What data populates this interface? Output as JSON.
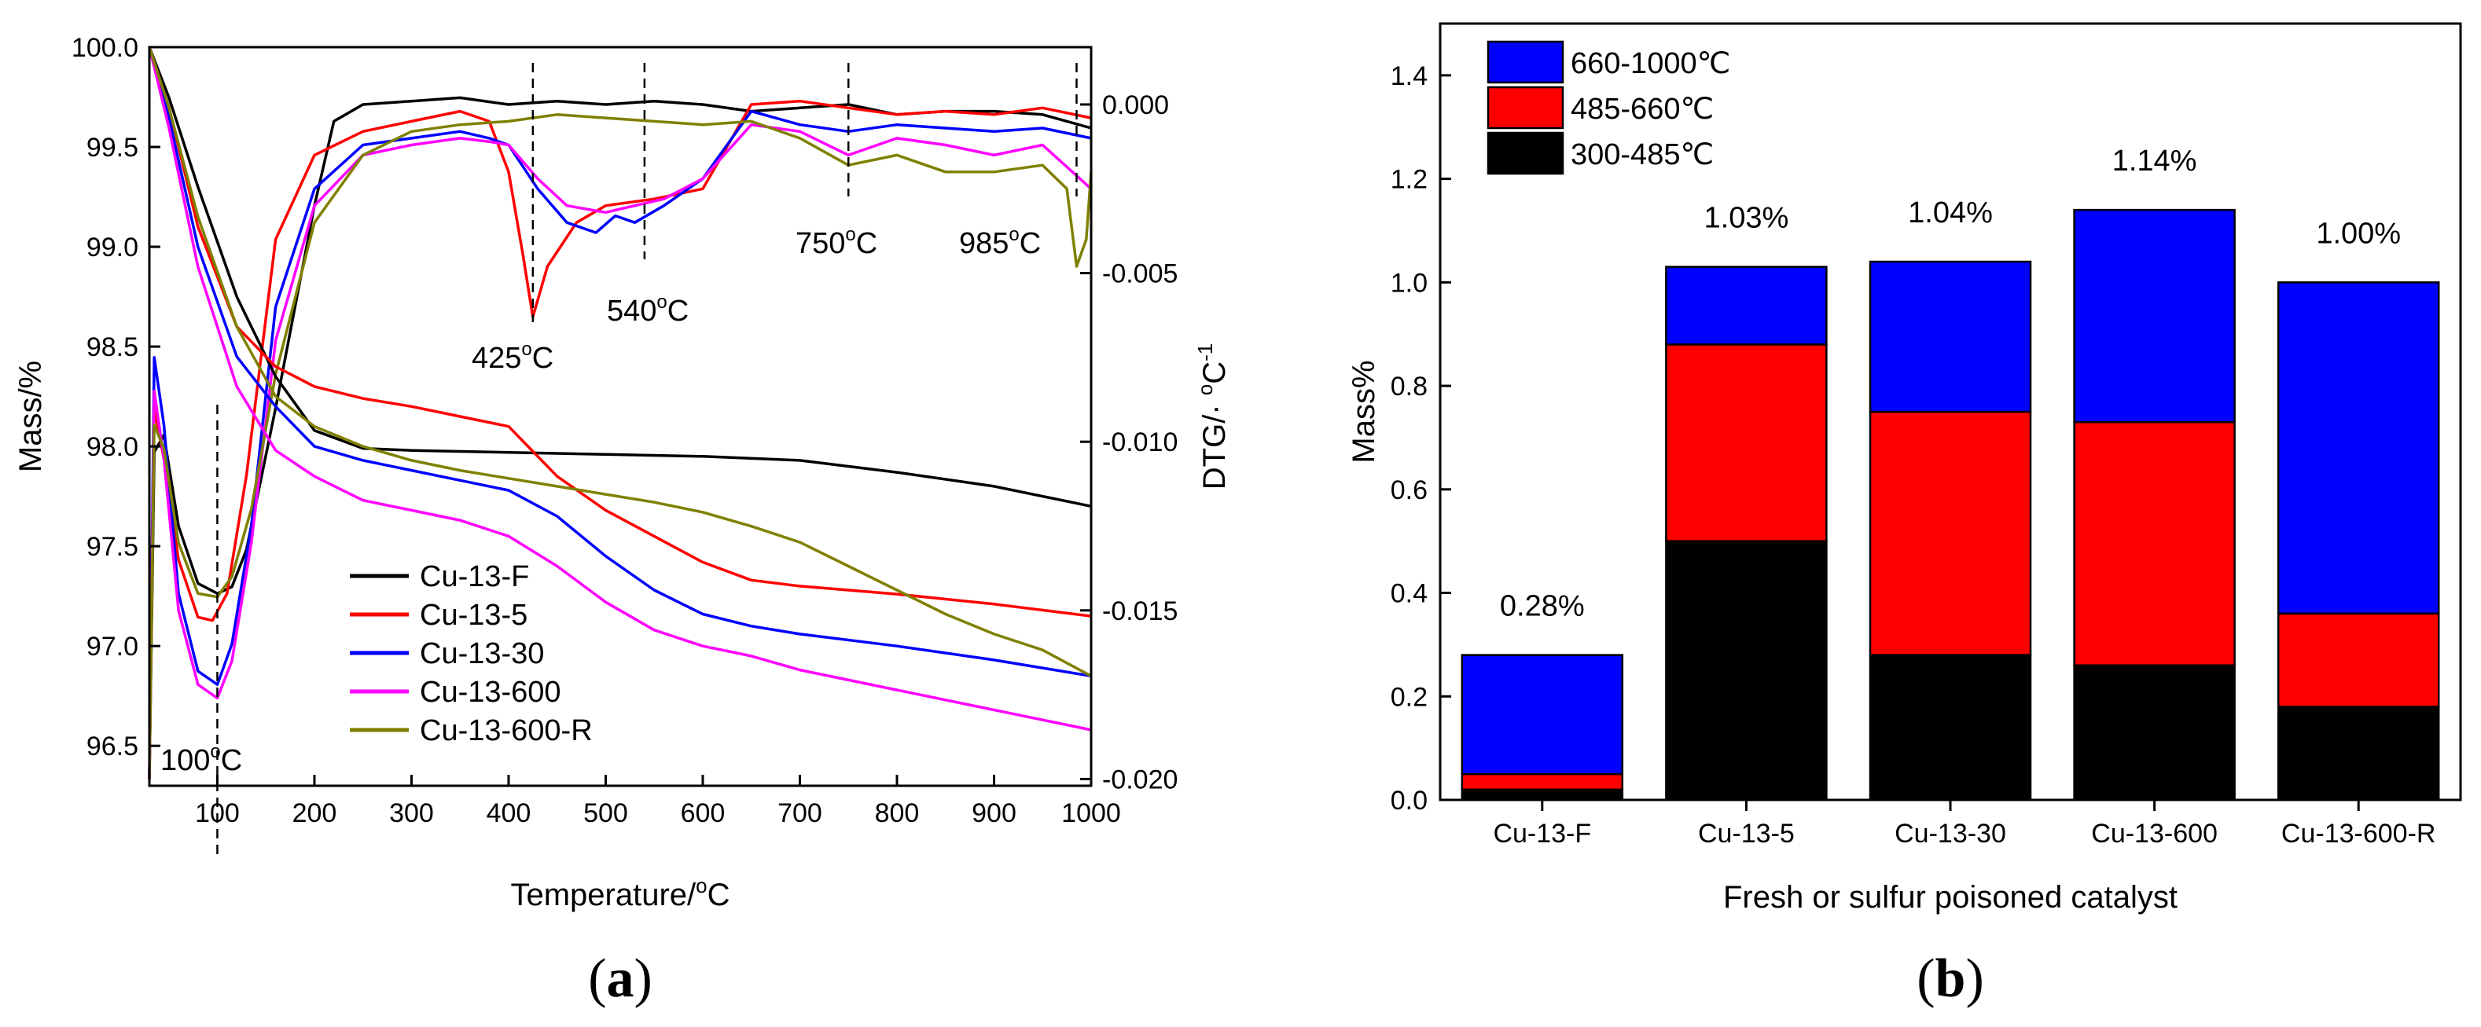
{
  "chart_data": [
    {
      "type": "line",
      "panel": "a",
      "xlabel": "Temperature/℃",
      "xlabel_main": "Temperature/",
      "xlabel_unit": "C",
      "ylabel": "Mass/%",
      "y2label": "DTG/·℃-1",
      "y2label_main": "DTG/· ",
      "y2label_unit": "C",
      "y2label_exp": "-1",
      "xlim": [
        30,
        1000
      ],
      "ylim": [
        96.3,
        100.0
      ],
      "y2lim": [
        -0.0202,
        0.0017
      ],
      "xticks": [
        "100",
        "200",
        "300",
        "400",
        "500",
        "600",
        "700",
        "800",
        "900",
        "1000"
      ],
      "yticks": [
        "96.5",
        "97.0",
        "97.5",
        "98.0",
        "98.5",
        "99.0",
        "99.5",
        "100.0"
      ],
      "y2ticks": [
        "0.000",
        "-0.005",
        "-0.010",
        "-0.015",
        "-0.020"
      ],
      "annotations": [
        {
          "text": "425°C",
          "num": "425",
          "unit": "C",
          "x": 425
        },
        {
          "text": "540°C",
          "num": "540",
          "unit": "C",
          "x": 540
        },
        {
          "text": "750°C",
          "num": "750",
          "unit": "C",
          "x": 750
        },
        {
          "text": "985°C",
          "num": "985",
          "unit": "C",
          "x": 985
        },
        {
          "text": "100°C",
          "num": "100",
          "unit": "C",
          "x": 100
        }
      ],
      "series": [
        {
          "name": "Cu-13-F",
          "color": "#000000",
          "tg_x": [
            30,
            50,
            80,
            120,
            160,
            200,
            250,
            300,
            400,
            500,
            600,
            700,
            800,
            900,
            1000
          ],
          "tg_y": [
            100.0,
            99.75,
            99.3,
            98.75,
            98.35,
            98.08,
            97.99,
            97.98,
            97.97,
            97.96,
            97.95,
            97.93,
            97.87,
            97.8,
            97.7
          ],
          "dtg_x": [
            30,
            35,
            45,
            60,
            80,
            100,
            115,
            130,
            160,
            200,
            220,
            250,
            300,
            350,
            400,
            450,
            500,
            550,
            600,
            650,
            700,
            750,
            800,
            850,
            900,
            950,
            1000
          ],
          "dtg_y": [
            -0.02,
            -0.0103,
            -0.0098,
            -0.0125,
            -0.0142,
            -0.0145,
            -0.0143,
            -0.0132,
            -0.009,
            -0.003,
            -0.0005,
            0.0,
            0.0001,
            0.0002,
            0.0,
            0.0001,
            0.0,
            0.0001,
            0.0,
            -0.0002,
            -0.0001,
            0.0,
            -0.0003,
            -0.0002,
            -0.0002,
            -0.0003,
            -0.0007
          ]
        },
        {
          "name": "Cu-13-5",
          "color": "#ff0000",
          "tg_x": [
            30,
            50,
            80,
            120,
            160,
            200,
            250,
            300,
            350,
            400,
            420,
            450,
            500,
            550,
            600,
            650,
            700,
            800,
            900,
            1000
          ],
          "tg_y": [
            100.0,
            99.7,
            99.1,
            98.6,
            98.4,
            98.3,
            98.24,
            98.2,
            98.15,
            98.1,
            98.0,
            97.85,
            97.68,
            97.55,
            97.42,
            97.33,
            97.3,
            97.26,
            97.21,
            97.15
          ],
          "dtg_x": [
            30,
            35,
            45,
            60,
            80,
            95,
            110,
            130,
            160,
            200,
            250,
            300,
            350,
            380,
            400,
            415,
            425,
            440,
            470,
            500,
            550,
            600,
            650,
            700,
            750,
            800,
            850,
            900,
            950,
            1000
          ],
          "dtg_y": [
            -0.02,
            -0.009,
            -0.0105,
            -0.0135,
            -0.0152,
            -0.0153,
            -0.0145,
            -0.011,
            -0.004,
            -0.0015,
            -0.0008,
            -0.0005,
            -0.0002,
            -0.0005,
            -0.002,
            -0.0045,
            -0.0063,
            -0.0048,
            -0.0035,
            -0.003,
            -0.0028,
            -0.0025,
            0.0,
            0.0001,
            -0.0001,
            -0.0003,
            -0.0002,
            -0.0003,
            -0.0001,
            -0.0004
          ]
        },
        {
          "name": "Cu-13-30",
          "color": "#0000ff",
          "tg_x": [
            30,
            50,
            80,
            120,
            160,
            200,
            250,
            300,
            350,
            400,
            450,
            500,
            550,
            600,
            650,
            700,
            800,
            900,
            1000
          ],
          "tg_y": [
            100.0,
            99.65,
            99.0,
            98.45,
            98.2,
            98.0,
            97.93,
            97.88,
            97.83,
            97.78,
            97.65,
            97.45,
            97.28,
            97.16,
            97.1,
            97.06,
            97.0,
            96.93,
            96.85
          ],
          "dtg_x": [
            30,
            35,
            45,
            60,
            80,
            100,
            115,
            135,
            160,
            200,
            250,
            300,
            350,
            380,
            400,
            430,
            460,
            490,
            510,
            530,
            560,
            600,
            650,
            700,
            750,
            800,
            850,
            900,
            950,
            1000
          ],
          "dtg_y": [
            -0.02,
            -0.0075,
            -0.0095,
            -0.0145,
            -0.0168,
            -0.0172,
            -0.016,
            -0.0125,
            -0.006,
            -0.0025,
            -0.0012,
            -0.001,
            -0.0008,
            -0.001,
            -0.0012,
            -0.0025,
            -0.0035,
            -0.0038,
            -0.0033,
            -0.0035,
            -0.003,
            -0.0022,
            -0.0002,
            -0.0006,
            -0.0008,
            -0.0006,
            -0.0007,
            -0.0008,
            -0.0007,
            -0.001
          ]
        },
        {
          "name": "Cu-13-600",
          "color": "#ff00ff",
          "tg_x": [
            30,
            50,
            80,
            120,
            160,
            200,
            250,
            300,
            350,
            400,
            450,
            500,
            550,
            600,
            650,
            700,
            800,
            900,
            1000
          ],
          "tg_y": [
            100.0,
            99.6,
            98.9,
            98.3,
            97.98,
            97.85,
            97.73,
            97.68,
            97.63,
            97.55,
            97.4,
            97.22,
            97.08,
            97.0,
            96.95,
            96.88,
            96.78,
            96.68,
            96.58
          ],
          "dtg_x": [
            30,
            35,
            45,
            60,
            80,
            100,
            115,
            135,
            160,
            200,
            250,
            300,
            350,
            380,
            400,
            430,
            460,
            500,
            530,
            560,
            600,
            650,
            700,
            750,
            800,
            850,
            900,
            950,
            1000
          ],
          "dtg_y": [
            -0.02,
            -0.0085,
            -0.0105,
            -0.015,
            -0.0172,
            -0.0176,
            -0.0165,
            -0.013,
            -0.007,
            -0.003,
            -0.0015,
            -0.0012,
            -0.001,
            -0.0011,
            -0.0012,
            -0.0022,
            -0.003,
            -0.0032,
            -0.003,
            -0.0028,
            -0.0022,
            -0.0006,
            -0.0008,
            -0.0015,
            -0.001,
            -0.0012,
            -0.0015,
            -0.0012,
            -0.0025
          ]
        },
        {
          "name": "Cu-13-600-R",
          "color": "#808000",
          "tg_x": [
            30,
            50,
            80,
            120,
            160,
            200,
            250,
            300,
            350,
            400,
            450,
            500,
            550,
            600,
            650,
            700,
            750,
            800,
            850,
            900,
            950,
            1000
          ],
          "tg_y": [
            100.0,
            99.7,
            99.15,
            98.6,
            98.25,
            98.1,
            98.0,
            97.93,
            97.88,
            97.84,
            97.8,
            97.76,
            97.72,
            97.67,
            97.6,
            97.52,
            97.4,
            97.28,
            97.16,
            97.06,
            96.98,
            96.85
          ],
          "dtg_x": [
            30,
            35,
            45,
            60,
            80,
            100,
            115,
            135,
            160,
            200,
            250,
            300,
            350,
            400,
            450,
            500,
            550,
            600,
            650,
            700,
            750,
            800,
            850,
            900,
            950,
            975,
            985,
            995,
            1000
          ],
          "dtg_y": [
            -0.02,
            -0.0095,
            -0.0102,
            -0.013,
            -0.0145,
            -0.0146,
            -0.014,
            -0.012,
            -0.008,
            -0.0035,
            -0.0015,
            -0.0008,
            -0.0006,
            -0.0005,
            -0.0003,
            -0.0004,
            -0.0005,
            -0.0006,
            -0.0005,
            -0.001,
            -0.0018,
            -0.0015,
            -0.002,
            -0.002,
            -0.0018,
            -0.0025,
            -0.0048,
            -0.004,
            -0.002
          ]
        }
      ]
    },
    {
      "type": "bar",
      "stacked": true,
      "panel": "b",
      "categories": [
        "Cu-13-F",
        "Cu-13-5",
        "Cu-13-30",
        "Cu-13-600",
        "Cu-13-600-R"
      ],
      "totals_labels": [
        "0.28%",
        "1.03%",
        "1.04%",
        "1.14%",
        "1.00%"
      ],
      "xlabel": "Fresh or sulfur poisoned catalyst",
      "ylabel": "Mass%",
      "ylim": [
        0.0,
        1.5
      ],
      "yticks": [
        "0.0",
        "0.2",
        "0.4",
        "0.6",
        "0.8",
        "1.0",
        "1.2",
        "1.4"
      ],
      "series": [
        {
          "name": "300-485℃",
          "color": "#000000",
          "values": [
            0.02,
            0.5,
            0.28,
            0.26,
            0.18
          ]
        },
        {
          "name": "485-660℃",
          "color": "#ff0000",
          "values": [
            0.03,
            0.38,
            0.47,
            0.47,
            0.18
          ]
        },
        {
          "name": "660-1000℃",
          "color": "#0000ff",
          "values": [
            0.23,
            0.15,
            0.29,
            0.41,
            0.64
          ]
        }
      ],
      "legend_order": [
        2,
        1,
        0
      ],
      "legend": "top-left"
    }
  ],
  "panel_labels": {
    "a": "a",
    "b": "b"
  }
}
